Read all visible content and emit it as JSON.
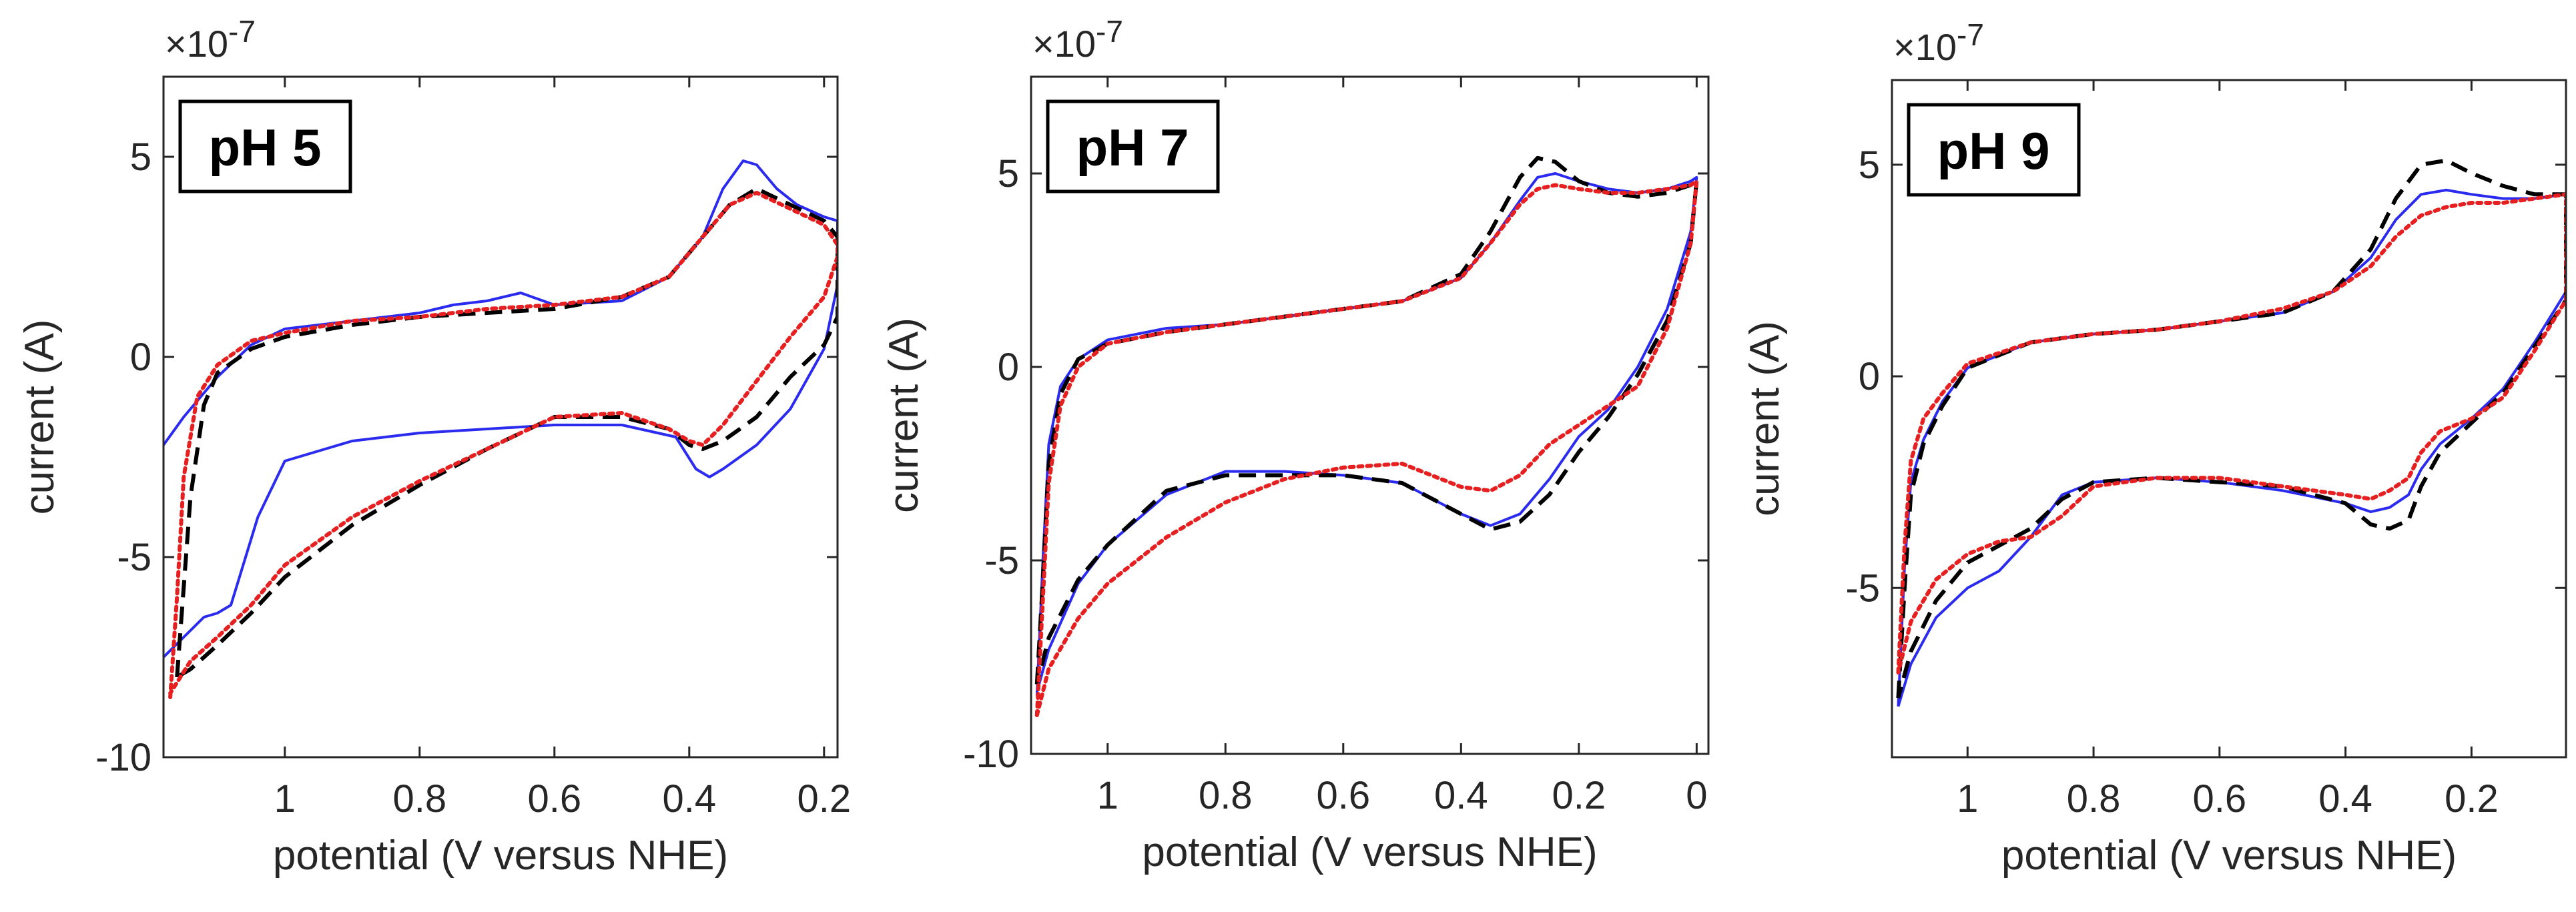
{
  "chart_data": [
    {
      "type": "line",
      "annotation": "pH 5",
      "xlabel": "potential (V versus NHE)",
      "ylabel": "current (A)",
      "y_exponent_base": "×10",
      "y_exponent_power": "-7",
      "xlim": [
        1.18,
        0.18
      ],
      "ylim": [
        -10,
        7
      ],
      "x_ticks": [
        1,
        0.8,
        0.6,
        0.4,
        0.2
      ],
      "x_tick_labels": [
        "1",
        "0.8",
        "0.6",
        "0.4",
        "0.2"
      ],
      "y_ticks": [
        5,
        0,
        -5,
        -10
      ],
      "y_tick_labels": [
        "5",
        "0",
        "-5",
        "-10"
      ],
      "grid": false,
      "series": [
        {
          "color": "#2b2bf0",
          "style": "solid",
          "x": [
            1.18,
            1.15,
            1.1,
            1.05,
            1.0,
            0.9,
            0.8,
            0.75,
            0.7,
            0.65,
            0.6,
            0.5,
            0.43,
            0.38,
            0.35,
            0.32,
            0.3,
            0.27,
            0.24,
            0.2,
            0.18,
            0.18,
            0.2,
            0.25,
            0.3,
            0.35,
            0.37,
            0.39,
            0.42,
            0.5,
            0.6,
            0.7,
            0.8,
            0.9,
            1.0,
            1.04,
            1.08,
            1.1,
            1.12,
            1.15,
            1.18
          ],
          "y": [
            -2.2,
            -1.5,
            -0.5,
            0.3,
            0.7,
            0.9,
            1.1,
            1.3,
            1.4,
            1.6,
            1.3,
            1.4,
            2.0,
            3.0,
            4.2,
            4.9,
            4.8,
            4.2,
            3.8,
            3.5,
            3.4,
            1.8,
            0.2,
            -1.3,
            -2.2,
            -2.8,
            -3.0,
            -2.8,
            -2.0,
            -1.7,
            -1.7,
            -1.8,
            -1.9,
            -2.1,
            -2.6,
            -4.0,
            -6.2,
            -6.4,
            -6.5,
            -7.0,
            -7.5
          ]
        },
        {
          "color": "#000000",
          "style": "dashed",
          "x": [
            1.16,
            1.14,
            1.12,
            1.1,
            1.05,
            1.0,
            0.9,
            0.8,
            0.7,
            0.6,
            0.5,
            0.43,
            0.38,
            0.34,
            0.3,
            0.25,
            0.2,
            0.18,
            0.18,
            0.2,
            0.25,
            0.3,
            0.35,
            0.38,
            0.4,
            0.43,
            0.5,
            0.6,
            0.7,
            0.8,
            0.9,
            1.0,
            1.05,
            1.1,
            1.14,
            1.16
          ],
          "y": [
            -8.0,
            -3.5,
            -1.2,
            -0.4,
            0.2,
            0.5,
            0.8,
            1.0,
            1.1,
            1.2,
            1.5,
            2.0,
            3.0,
            3.8,
            4.2,
            3.8,
            3.4,
            3.0,
            1.0,
            0.3,
            -0.5,
            -1.5,
            -2.1,
            -2.3,
            -2.2,
            -1.8,
            -1.5,
            -1.5,
            -2.3,
            -3.2,
            -4.2,
            -5.5,
            -6.4,
            -7.2,
            -7.8,
            -8.0
          ]
        },
        {
          "color": "#e62020",
          "style": "dotted",
          "x": [
            1.17,
            1.16,
            1.15,
            1.13,
            1.1,
            1.05,
            1.0,
            0.9,
            0.8,
            0.7,
            0.6,
            0.5,
            0.43,
            0.38,
            0.34,
            0.3,
            0.25,
            0.2,
            0.18,
            0.18,
            0.2,
            0.25,
            0.3,
            0.35,
            0.38,
            0.4,
            0.43,
            0.5,
            0.6,
            0.7,
            0.8,
            0.9,
            1.0,
            1.05,
            1.1,
            1.14,
            1.17
          ],
          "y": [
            -8.5,
            -6.0,
            -3.0,
            -1.0,
            -0.2,
            0.4,
            0.6,
            0.9,
            1.0,
            1.2,
            1.3,
            1.5,
            2.0,
            3.0,
            3.8,
            4.1,
            3.7,
            3.3,
            2.8,
            2.5,
            1.5,
            0.5,
            -0.6,
            -1.7,
            -2.2,
            -2.1,
            -1.8,
            -1.4,
            -1.5,
            -2.3,
            -3.1,
            -4.0,
            -5.2,
            -6.2,
            -7.0,
            -7.6,
            -8.4
          ]
        }
      ]
    },
    {
      "type": "line",
      "annotation": "pH 7",
      "xlabel": "potential (V versus NHE)",
      "ylabel": "current (A)",
      "y_exponent_base": "×10",
      "y_exponent_power": "-7",
      "xlim": [
        1.13,
        -0.02
      ],
      "ylim": [
        -10,
        7.5
      ],
      "x_ticks": [
        1,
        0.8,
        0.6,
        0.4,
        0.2,
        0
      ],
      "x_tick_labels": [
        "1",
        "0.8",
        "0.6",
        "0.4",
        "0.2",
        "0"
      ],
      "y_ticks": [
        5,
        0,
        -5,
        -10
      ],
      "y_tick_labels": [
        "5",
        "0",
        "-5",
        "-10"
      ],
      "grid": false,
      "series": [
        {
          "color": "#2b2bf0",
          "style": "solid",
          "x": [
            1.12,
            1.11,
            1.1,
            1.08,
            1.05,
            1.0,
            0.9,
            0.8,
            0.7,
            0.6,
            0.5,
            0.4,
            0.35,
            0.3,
            0.27,
            0.24,
            0.2,
            0.15,
            0.1,
            0.05,
            0.01,
            0.0,
            0.01,
            0.05,
            0.1,
            0.15,
            0.2,
            0.25,
            0.3,
            0.35,
            0.4,
            0.5,
            0.6,
            0.7,
            0.8,
            0.9,
            1.0,
            1.05,
            1.1,
            1.12
          ],
          "y": [
            -8.5,
            -5.0,
            -2.0,
            -0.5,
            0.2,
            0.7,
            1.0,
            1.1,
            1.3,
            1.5,
            1.7,
            2.3,
            3.2,
            4.3,
            4.9,
            5.0,
            4.8,
            4.6,
            4.5,
            4.6,
            4.8,
            4.9,
            3.5,
            1.5,
            0.0,
            -1.1,
            -1.8,
            -2.9,
            -3.8,
            -4.1,
            -3.8,
            -3.0,
            -2.8,
            -2.7,
            -2.7,
            -3.3,
            -4.6,
            -5.6,
            -7.3,
            -8.4
          ]
        },
        {
          "color": "#000000",
          "style": "dashed",
          "x": [
            1.12,
            1.11,
            1.1,
            1.08,
            1.05,
            1.0,
            0.9,
            0.8,
            0.7,
            0.6,
            0.5,
            0.4,
            0.35,
            0.3,
            0.27,
            0.24,
            0.2,
            0.15,
            0.1,
            0.05,
            0.01,
            0.0,
            0.01,
            0.05,
            0.1,
            0.15,
            0.2,
            0.25,
            0.3,
            0.35,
            0.4,
            0.5,
            0.6,
            0.7,
            0.8,
            0.9,
            1.0,
            1.05,
            1.1,
            1.12
          ],
          "y": [
            -8.2,
            -5.5,
            -2.5,
            -0.7,
            0.2,
            0.6,
            0.9,
            1.1,
            1.3,
            1.5,
            1.7,
            2.4,
            3.5,
            4.9,
            5.4,
            5.3,
            4.8,
            4.5,
            4.4,
            4.5,
            4.7,
            4.8,
            3.2,
            1.2,
            -0.2,
            -1.3,
            -2.2,
            -3.3,
            -4.0,
            -4.2,
            -3.8,
            -3.0,
            -2.8,
            -2.8,
            -2.8,
            -3.2,
            -4.6,
            -5.5,
            -7.0,
            -8.2
          ]
        },
        {
          "color": "#e62020",
          "style": "dotted",
          "x": [
            1.12,
            1.11,
            1.1,
            1.08,
            1.05,
            1.0,
            0.9,
            0.8,
            0.7,
            0.6,
            0.5,
            0.4,
            0.35,
            0.3,
            0.27,
            0.24,
            0.2,
            0.15,
            0.1,
            0.05,
            0.01,
            0.0,
            0.01,
            0.05,
            0.1,
            0.15,
            0.2,
            0.25,
            0.3,
            0.35,
            0.4,
            0.5,
            0.6,
            0.7,
            0.8,
            0.9,
            1.0,
            1.05,
            1.1,
            1.12
          ],
          "y": [
            -9.0,
            -6.0,
            -3.0,
            -1.0,
            0.0,
            0.6,
            0.9,
            1.1,
            1.3,
            1.5,
            1.7,
            2.3,
            3.2,
            4.2,
            4.6,
            4.7,
            4.6,
            4.5,
            4.5,
            4.6,
            4.7,
            4.8,
            3.2,
            1.0,
            -0.5,
            -1.0,
            -1.5,
            -2.0,
            -2.8,
            -3.2,
            -3.1,
            -2.5,
            -2.6,
            -2.9,
            -3.5,
            -4.4,
            -5.6,
            -6.5,
            -7.8,
            -9.0
          ]
        }
      ]
    },
    {
      "type": "line",
      "annotation": "pH 9",
      "xlabel": "potential (V versus NHE)",
      "ylabel": "current (A)",
      "y_exponent_base": "×10",
      "y_exponent_power": "-7",
      "xlim": [
        1.12,
        0.05
      ],
      "ylim": [
        -9,
        7
      ],
      "x_ticks": [
        1,
        0.8,
        0.6,
        0.4,
        0.2
      ],
      "x_tick_labels": [
        "1",
        "0.8",
        "0.6",
        "0.4",
        "0.2"
      ],
      "y_ticks": [
        5,
        0,
        -5
      ],
      "y_tick_labels": [
        "5",
        "0",
        "-5"
      ],
      "grid": false,
      "series": [
        {
          "color": "#2b2bf0",
          "style": "solid",
          "x": [
            1.11,
            1.1,
            1.09,
            1.07,
            1.04,
            1.0,
            0.9,
            0.8,
            0.7,
            0.6,
            0.5,
            0.42,
            0.36,
            0.32,
            0.28,
            0.24,
            0.2,
            0.15,
            0.1,
            0.05,
            0.05,
            0.1,
            0.15,
            0.2,
            0.25,
            0.28,
            0.3,
            0.33,
            0.36,
            0.4,
            0.5,
            0.6,
            0.7,
            0.8,
            0.85,
            0.9,
            0.95,
            1.0,
            1.05,
            1.09,
            1.11
          ],
          "y": [
            -7.8,
            -4.5,
            -2.5,
            -1.5,
            -0.6,
            0.2,
            0.8,
            1.0,
            1.1,
            1.3,
            1.5,
            2.0,
            2.8,
            3.7,
            4.3,
            4.4,
            4.3,
            4.2,
            4.2,
            4.3,
            2.0,
            0.8,
            -0.3,
            -1.0,
            -1.6,
            -2.2,
            -2.8,
            -3.1,
            -3.2,
            -3.0,
            -2.7,
            -2.5,
            -2.4,
            -2.5,
            -2.8,
            -3.8,
            -4.6,
            -5.0,
            -5.7,
            -6.8,
            -7.8
          ]
        },
        {
          "color": "#000000",
          "style": "dashed",
          "x": [
            1.11,
            1.1,
            1.09,
            1.07,
            1.04,
            1.0,
            0.9,
            0.8,
            0.7,
            0.6,
            0.5,
            0.42,
            0.36,
            0.32,
            0.28,
            0.24,
            0.2,
            0.15,
            0.1,
            0.05,
            0.05,
            0.1,
            0.15,
            0.2,
            0.25,
            0.28,
            0.3,
            0.33,
            0.36,
            0.4,
            0.5,
            0.6,
            0.7,
            0.8,
            0.85,
            0.9,
            0.95,
            1.0,
            1.05,
            1.09,
            1.11
          ],
          "y": [
            -7.6,
            -5.0,
            -2.8,
            -1.6,
            -0.7,
            0.2,
            0.8,
            1.0,
            1.1,
            1.3,
            1.5,
            2.0,
            3.0,
            4.2,
            5.0,
            5.1,
            4.8,
            4.5,
            4.3,
            4.3,
            1.8,
            0.7,
            -0.4,
            -1.1,
            -1.8,
            -2.6,
            -3.4,
            -3.6,
            -3.5,
            -3.0,
            -2.6,
            -2.5,
            -2.4,
            -2.5,
            -2.9,
            -3.6,
            -4.0,
            -4.4,
            -5.3,
            -6.5,
            -7.6
          ]
        },
        {
          "color": "#e62020",
          "style": "dotted",
          "x": [
            1.11,
            1.1,
            1.09,
            1.07,
            1.04,
            1.0,
            0.9,
            0.8,
            0.7,
            0.6,
            0.5,
            0.42,
            0.36,
            0.32,
            0.28,
            0.24,
            0.2,
            0.15,
            0.1,
            0.05,
            0.05,
            0.1,
            0.15,
            0.2,
            0.25,
            0.28,
            0.3,
            0.33,
            0.36,
            0.4,
            0.5,
            0.6,
            0.7,
            0.8,
            0.85,
            0.9,
            0.95,
            1.0,
            1.05,
            1.09,
            1.11
          ],
          "y": [
            -7.0,
            -4.0,
            -2.0,
            -1.0,
            -0.4,
            0.3,
            0.8,
            1.0,
            1.1,
            1.3,
            1.6,
            2.0,
            2.6,
            3.3,
            3.8,
            4.0,
            4.1,
            4.1,
            4.2,
            4.3,
            1.8,
            0.6,
            -0.5,
            -1.0,
            -1.3,
            -1.8,
            -2.4,
            -2.7,
            -2.9,
            -2.8,
            -2.6,
            -2.4,
            -2.4,
            -2.6,
            -3.3,
            -3.8,
            -3.9,
            -4.2,
            -4.8,
            -5.8,
            -7.0
          ]
        }
      ]
    }
  ]
}
